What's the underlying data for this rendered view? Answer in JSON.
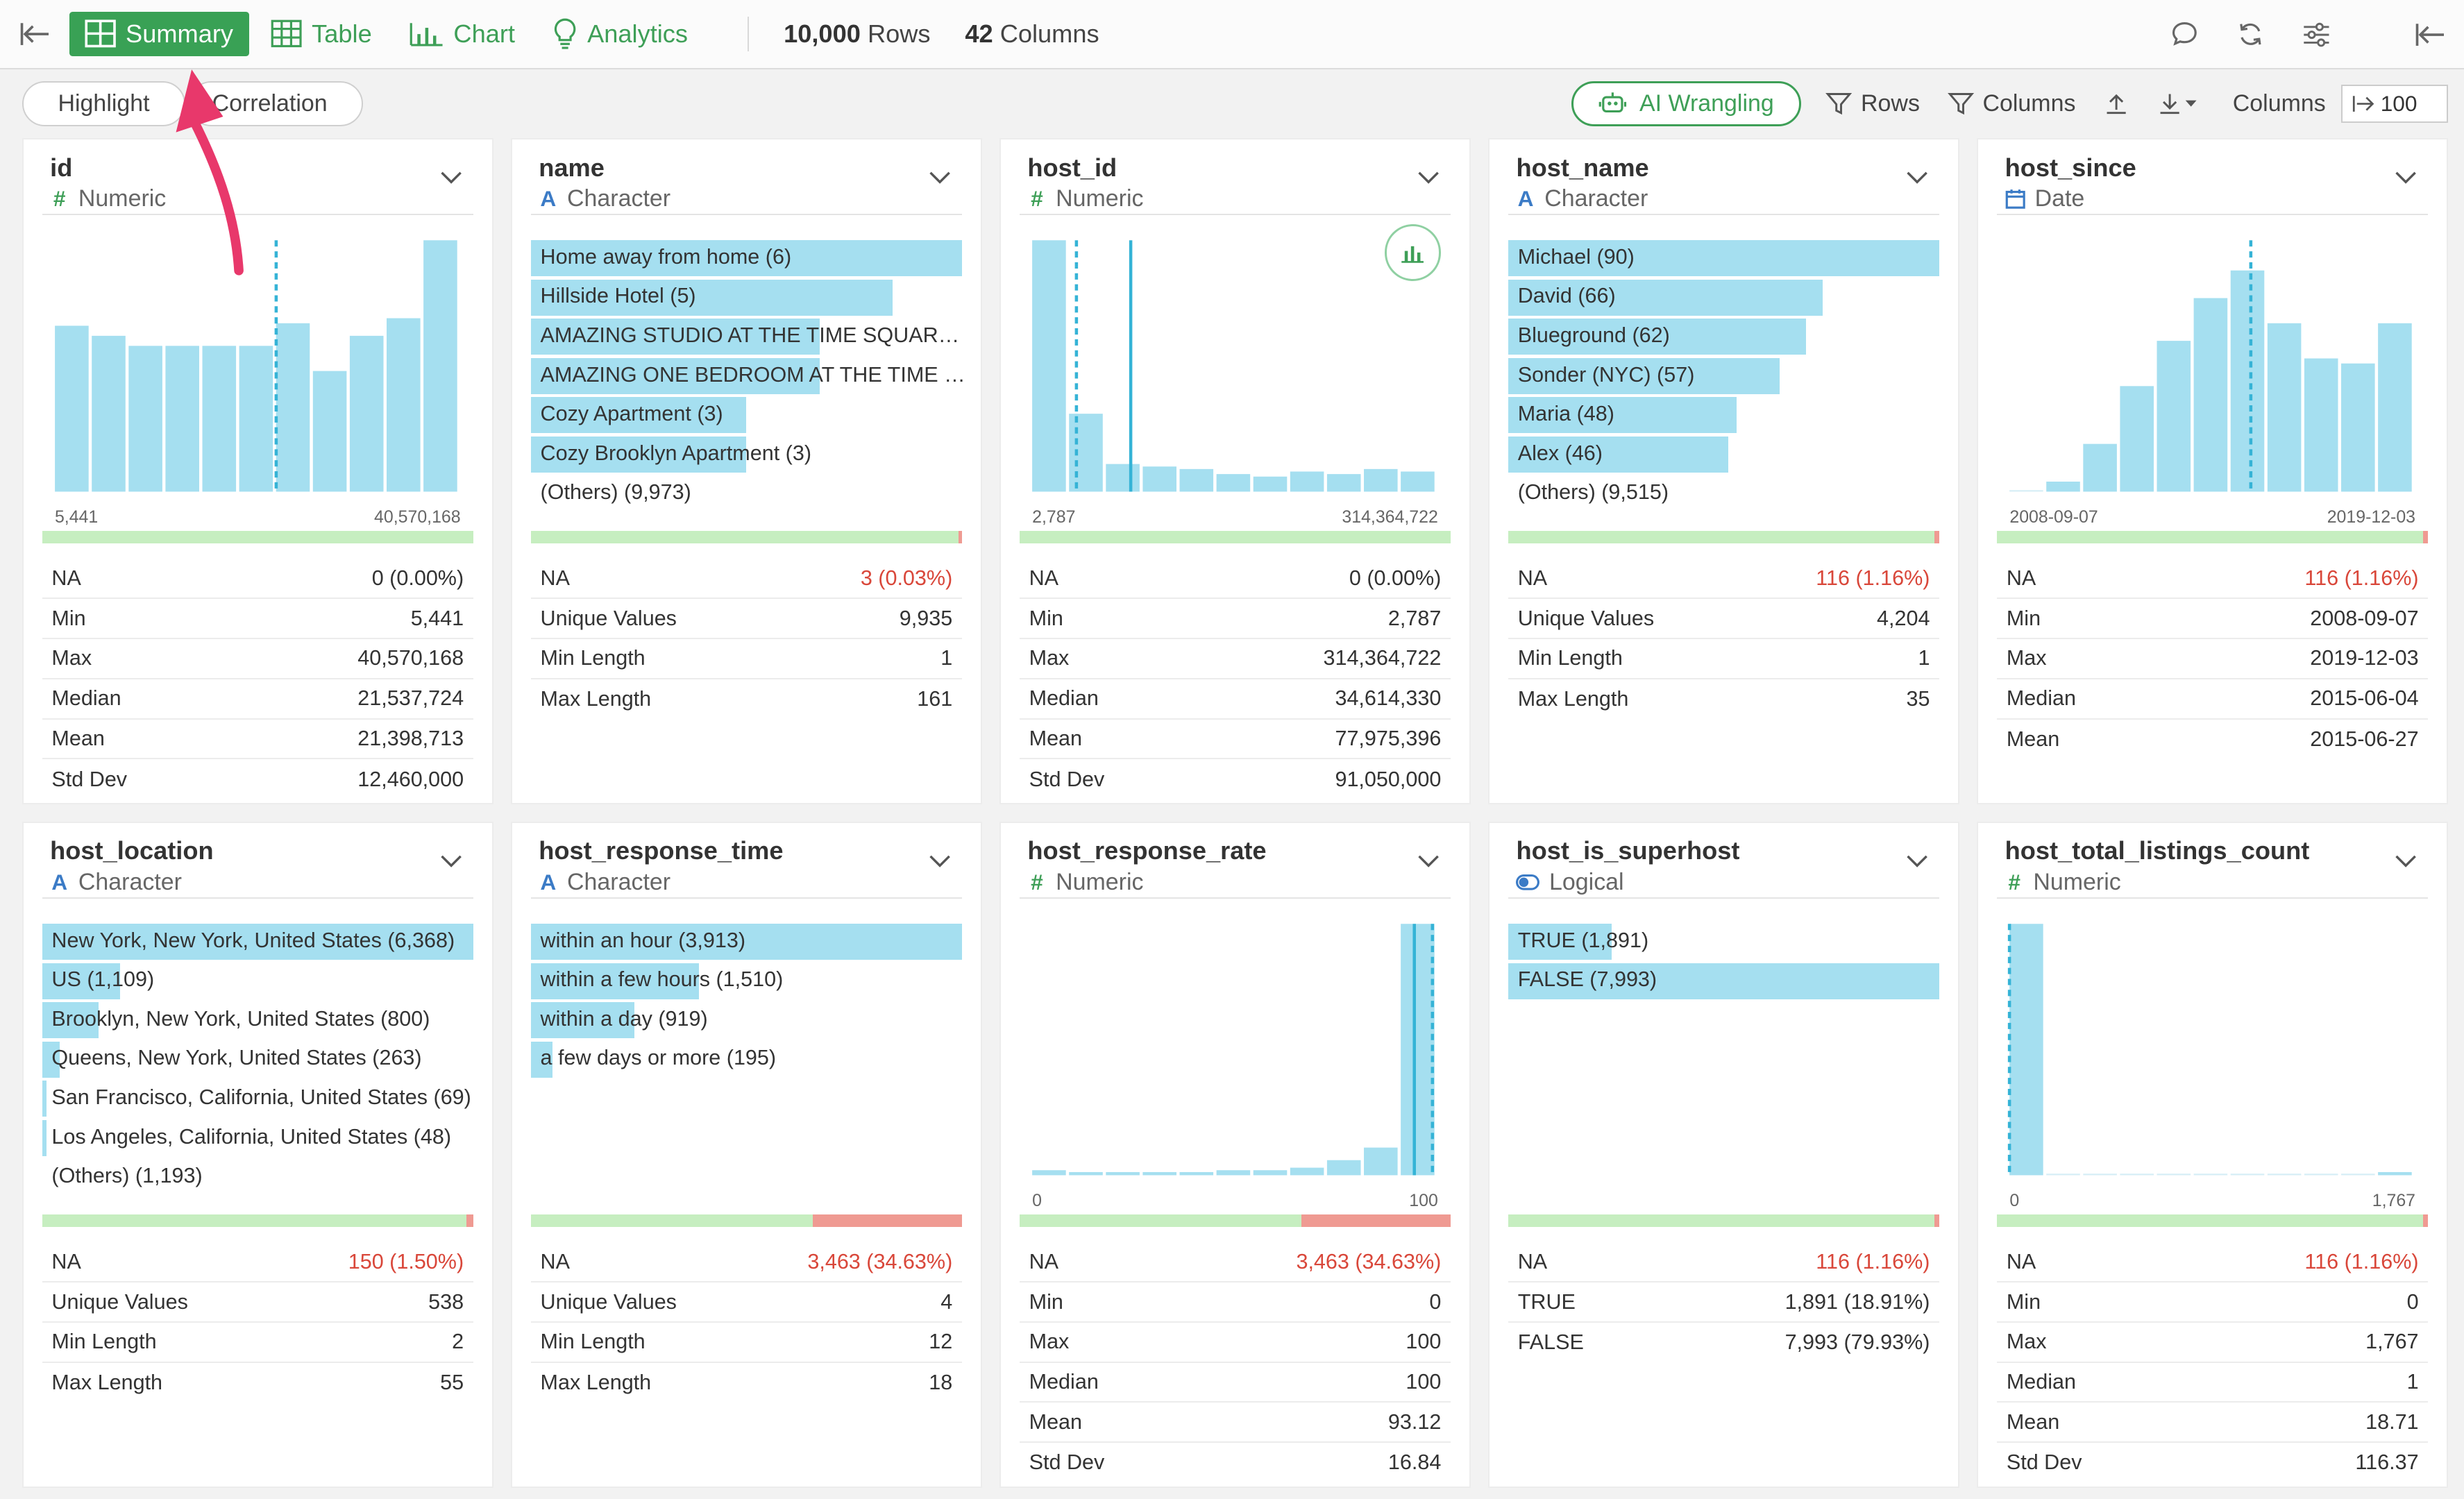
{
  "toolbar": {
    "modes": [
      {
        "label": "Summary",
        "icon": "grid-icon",
        "active": true
      },
      {
        "label": "Table",
        "icon": "table-icon",
        "active": false
      },
      {
        "label": "Chart",
        "icon": "chart-icon",
        "active": false
      },
      {
        "label": "Analytics",
        "icon": "lightbulb-icon",
        "active": false
      }
    ],
    "rows_count": "10,000",
    "rows_label": "Rows",
    "cols_count": "42",
    "cols_label": "Columns"
  },
  "subbar": {
    "highlight": "Highlight",
    "correlation": "Correlation",
    "ai_wrangling": "AI Wrangling",
    "rows": "Rows",
    "columns": "Columns",
    "columns_label": "Columns",
    "columns_value": "100"
  },
  "cards": [
    {
      "name": "id",
      "type": "Numeric",
      "sym": "#",
      "symcls": "sym-num",
      "viz": "hist",
      "bars": [
        0.66,
        0.62,
        0.58,
        0.58,
        0.58,
        0.58,
        0.67,
        0.48,
        0.62,
        0.69,
        1.0
      ],
      "lines": [
        {
          "pos": 0.55,
          "dash": true
        }
      ],
      "range_min": "5,441",
      "range_max": "40,570,168",
      "na_frac": 0,
      "stats": [
        [
          "NA",
          "0 (0.00%)",
          false
        ],
        [
          "Min",
          "5,441",
          false
        ],
        [
          "Max",
          "40,570,168",
          false
        ],
        [
          "Median",
          "21,537,724",
          false
        ],
        [
          "Mean",
          "21,398,713",
          false
        ],
        [
          "Std Dev",
          "12,460,000",
          false
        ]
      ]
    },
    {
      "name": "name",
      "type": "Character",
      "sym": "A",
      "symcls": "sym-chr",
      "viz": "bars",
      "items": [
        [
          "Home away from home (6)",
          1.0
        ],
        [
          "Hillside Hotel (5)",
          0.84
        ],
        [
          "AMAZING STUDIO AT THE TIME SQUAR…",
          0.67
        ],
        [
          "AMAZING ONE BEDROOM AT THE TIME …",
          0.67
        ],
        [
          "Cozy Apartment (3)",
          0.5
        ],
        [
          "Cozy Brooklyn Apartment (3)",
          0.5
        ],
        [
          "(Others) (9,973)",
          0
        ]
      ],
      "na_frac": 0.0003,
      "stats": [
        [
          "NA",
          "3 (0.03%)",
          true
        ],
        [
          "Unique Values",
          "9,935",
          false
        ],
        [
          "Min Length",
          "1",
          false
        ],
        [
          "Max Length",
          "161",
          false
        ]
      ]
    },
    {
      "name": "host_id",
      "type": "Numeric",
      "sym": "#",
      "symcls": "sym-num",
      "viz": "hist",
      "bars": [
        1.0,
        0.31,
        0.11,
        0.1,
        0.09,
        0.07,
        0.06,
        0.08,
        0.07,
        0.09,
        0.08
      ],
      "lines": [
        {
          "pos": 0.11,
          "dash": true
        },
        {
          "pos": 0.245,
          "dash": false
        }
      ],
      "range_min": "2,787",
      "range_max": "314,364,722",
      "na_frac": 0,
      "chartbtn": true,
      "stats": [
        [
          "NA",
          "0 (0.00%)",
          false
        ],
        [
          "Min",
          "2,787",
          false
        ],
        [
          "Max",
          "314,364,722",
          false
        ],
        [
          "Median",
          "34,614,330",
          false
        ],
        [
          "Mean",
          "77,975,396",
          false
        ],
        [
          "Std Dev",
          "91,050,000",
          false
        ]
      ]
    },
    {
      "name": "host_name",
      "type": "Character",
      "sym": "A",
      "symcls": "sym-chr",
      "viz": "bars",
      "items": [
        [
          "Michael (90)",
          1.0
        ],
        [
          "David (66)",
          0.73
        ],
        [
          "Blueground (62)",
          0.69
        ],
        [
          "Sonder (NYC) (57)",
          0.63
        ],
        [
          "Maria (48)",
          0.53
        ],
        [
          "Alex (46)",
          0.51
        ],
        [
          "(Others) (9,515)",
          0
        ]
      ],
      "na_frac": 0.0116,
      "stats": [
        [
          "NA",
          "116 (1.16%)",
          true
        ],
        [
          "Unique Values",
          "4,204",
          false
        ],
        [
          "Min Length",
          "1",
          false
        ],
        [
          "Max Length",
          "35",
          false
        ]
      ]
    },
    {
      "name": "host_since",
      "type": "Date",
      "sym": "cal",
      "symcls": "sym-chr",
      "viz": "hist",
      "bars": [
        0.0,
        0.04,
        0.19,
        0.42,
        0.6,
        0.77,
        0.88,
        0.67,
        0.53,
        0.51,
        0.67
      ],
      "lines": [
        {
          "pos": 0.6,
          "dash": true
        }
      ],
      "range_min": "2008-09-07",
      "range_max": "2019-12-03",
      "na_frac": 0.0116,
      "stats": [
        [
          "NA",
          "116 (1.16%)",
          true
        ],
        [
          "Min",
          "2008-09-07",
          false
        ],
        [
          "Max",
          "2019-12-03",
          false
        ],
        [
          "Median",
          "2015-06-04",
          false
        ],
        [
          "Mean",
          "2015-06-27",
          false
        ]
      ]
    },
    {
      "name": "host_location",
      "type": "Character",
      "sym": "A",
      "symcls": "sym-chr",
      "viz": "bars",
      "items": [
        [
          "New York, New York, United States (6,368)",
          1.0
        ],
        [
          "US (1,109)",
          0.18
        ],
        [
          "Brooklyn, New York, United States (800)",
          0.13
        ],
        [
          "Queens, New York, United States (263)",
          0.04
        ],
        [
          "San Francisco, California, United States (69)",
          0.01
        ],
        [
          "Los Angeles, California, United States (48)",
          0.01
        ],
        [
          "(Others) (1,193)",
          0
        ]
      ],
      "na_frac": 0.015,
      "stats": [
        [
          "NA",
          "150 (1.50%)",
          true
        ],
        [
          "Unique Values",
          "538",
          false
        ],
        [
          "Min Length",
          "2",
          false
        ],
        [
          "Max Length",
          "55",
          false
        ]
      ]
    },
    {
      "name": "host_response_time",
      "type": "Character",
      "sym": "A",
      "symcls": "sym-chr",
      "viz": "bars",
      "items": [
        [
          "within an hour (3,913)",
          1.0
        ],
        [
          "within a few hours (1,510)",
          0.39
        ],
        [
          "within a day (919)",
          0.24
        ],
        [
          "a few days or more (195)",
          0.05
        ]
      ],
      "na_frac": 0.3463,
      "stats": [
        [
          "NA",
          "3,463 (34.63%)",
          true
        ],
        [
          "Unique Values",
          "4",
          false
        ],
        [
          "Min Length",
          "12",
          false
        ],
        [
          "Max Length",
          "18",
          false
        ]
      ]
    },
    {
      "name": "host_response_rate",
      "type": "Numeric",
      "sym": "#",
      "symcls": "sym-num",
      "viz": "hist",
      "bars": [
        0.02,
        0.01,
        0.01,
        0.01,
        0.01,
        0.02,
        0.02,
        0.03,
        0.06,
        0.11,
        1.0
      ],
      "lines": [
        {
          "pos": 0.95,
          "dash": false
        },
        {
          "pos": 0.995,
          "dash": true
        }
      ],
      "range_min": "0",
      "range_max": "100",
      "na_frac": 0.3463,
      "stats": [
        [
          "NA",
          "3,463 (34.63%)",
          true
        ],
        [
          "Min",
          "0",
          false
        ],
        [
          "Max",
          "100",
          false
        ],
        [
          "Median",
          "100",
          false
        ],
        [
          "Mean",
          "93.12",
          false
        ],
        [
          "Std Dev",
          "16.84",
          false
        ]
      ]
    },
    {
      "name": "host_is_superhost",
      "type": "Logical",
      "sym": "toggle",
      "symcls": "sym-chr",
      "viz": "bars",
      "items": [
        [
          "TRUE (1,891)",
          0.24
        ],
        [
          "FALSE (7,993)",
          1.0
        ]
      ],
      "na_frac": 0.0116,
      "stats": [
        [
          "NA",
          "116 (1.16%)",
          true
        ],
        [
          "TRUE",
          "1,891 (18.91%)",
          false
        ],
        [
          "FALSE",
          "7,993 (79.93%)",
          false
        ]
      ]
    },
    {
      "name": "host_total_listings_count",
      "type": "Numeric",
      "sym": "#",
      "symcls": "sym-num",
      "viz": "hist",
      "bars": [
        1.0,
        0.0,
        0.0,
        0.0,
        0.0,
        0.0,
        0.0,
        0.0,
        0.0,
        0.0,
        0.01
      ],
      "lines": [
        {
          "pos": 0.0,
          "dash": true
        }
      ],
      "range_min": "0",
      "range_max": "1,767",
      "na_frac": 0.0116,
      "stats": [
        [
          "NA",
          "116 (1.16%)",
          true
        ],
        [
          "Min",
          "0",
          false
        ],
        [
          "Max",
          "1,767",
          false
        ],
        [
          "Median",
          "1",
          false
        ],
        [
          "Mean",
          "18.71",
          false
        ],
        [
          "Std Dev",
          "116.37",
          false
        ]
      ]
    }
  ]
}
